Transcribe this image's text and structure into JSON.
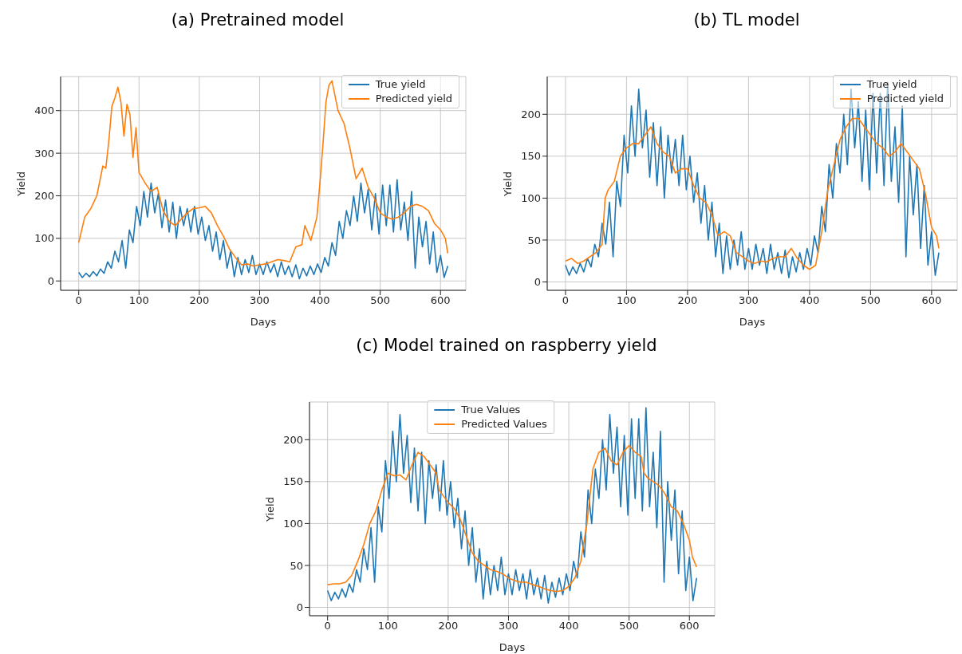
{
  "chart_data": [
    {
      "type": "line",
      "title": "(a) Pretrained model",
      "xlabel": "Days",
      "ylabel": "Yield",
      "xlim": [
        -30,
        642
      ],
      "ylim": [
        -22,
        480
      ],
      "xticks": [
        0,
        100,
        200,
        300,
        400,
        500,
        600
      ],
      "yticks": [
        0,
        100,
        200,
        300,
        400
      ],
      "grid": true,
      "legend": "top right",
      "series": [
        {
          "name": "True yield",
          "color": "#1f77b4",
          "x": [
            0,
            6,
            12,
            18,
            24,
            30,
            36,
            42,
            48,
            54,
            60,
            66,
            72,
            78,
            84,
            90,
            96,
            102,
            108,
            114,
            120,
            126,
            132,
            138,
            144,
            150,
            156,
            162,
            168,
            174,
            180,
            186,
            192,
            198,
            204,
            210,
            216,
            222,
            228,
            234,
            240,
            246,
            252,
            258,
            264,
            270,
            276,
            282,
            288,
            294,
            300,
            306,
            312,
            318,
            324,
            330,
            336,
            342,
            348,
            354,
            360,
            366,
            372,
            378,
            384,
            390,
            396,
            402,
            408,
            414,
            420,
            426,
            432,
            438,
            444,
            450,
            456,
            462,
            468,
            474,
            480,
            486,
            492,
            498,
            504,
            510,
            516,
            522,
            528,
            534,
            540,
            546,
            552,
            558,
            564,
            570,
            576,
            582,
            588,
            594,
            600,
            606,
            612
          ],
          "values": [
            20,
            8,
            18,
            10,
            22,
            12,
            28,
            18,
            45,
            30,
            70,
            45,
            95,
            30,
            120,
            90,
            175,
            130,
            210,
            150,
            230,
            160,
            205,
            125,
            190,
            115,
            185,
            100,
            175,
            130,
            170,
            115,
            175,
            110,
            150,
            95,
            130,
            70,
            115,
            50,
            95,
            30,
            70,
            10,
            55,
            15,
            50,
            20,
            60,
            15,
            40,
            15,
            45,
            20,
            40,
            10,
            45,
            15,
            35,
            10,
            38,
            5,
            30,
            12,
            35,
            15,
            40,
            20,
            55,
            35,
            90,
            60,
            140,
            100,
            165,
            130,
            200,
            140,
            230,
            160,
            215,
            120,
            205,
            110,
            225,
            130,
            225,
            115,
            238,
            120,
            185,
            95,
            210,
            30,
            150,
            80,
            140,
            40,
            115,
            20,
            60,
            8,
            35
          ]
        },
        {
          "name": "Predicted yield",
          "color": "#ff7f0e",
          "x": [
            0,
            10,
            20,
            30,
            40,
            45,
            50,
            55,
            60,
            65,
            70,
            75,
            80,
            85,
            90,
            95,
            100,
            110,
            120,
            130,
            140,
            150,
            160,
            170,
            180,
            190,
            200,
            210,
            220,
            230,
            240,
            250,
            260,
            270,
            280,
            290,
            300,
            310,
            320,
            330,
            340,
            350,
            360,
            370,
            375,
            385,
            395,
            400,
            405,
            410,
            415,
            420,
            430,
            440,
            450,
            460,
            470,
            480,
            490,
            500,
            510,
            520,
            530,
            540,
            550,
            560,
            570,
            580,
            590,
            600,
            608,
            612
          ],
          "values": [
            90,
            150,
            170,
            200,
            270,
            265,
            330,
            410,
            430,
            455,
            420,
            340,
            415,
            390,
            290,
            360,
            255,
            230,
            210,
            220,
            165,
            140,
            130,
            145,
            160,
            170,
            172,
            175,
            160,
            130,
            105,
            75,
            55,
            38,
            40,
            35,
            38,
            40,
            45,
            50,
            48,
            45,
            80,
            85,
            130,
            95,
            150,
            230,
            320,
            420,
            460,
            470,
            400,
            370,
            310,
            240,
            265,
            220,
            195,
            160,
            150,
            145,
            150,
            160,
            175,
            180,
            175,
            165,
            135,
            120,
            100,
            65
          ]
        }
      ]
    },
    {
      "type": "line",
      "title": "(b) TL model",
      "xlabel": "Days",
      "ylabel": "Yield",
      "xlim": [
        -30,
        642
      ],
      "ylim": [
        -10,
        245
      ],
      "xticks": [
        0,
        100,
        200,
        300,
        400,
        500,
        600
      ],
      "yticks": [
        0,
        50,
        100,
        150,
        200
      ],
      "grid": true,
      "legend": "top right",
      "series": [
        {
          "name": "True yield",
          "color": "#1f77b4",
          "x": [
            0,
            6,
            12,
            18,
            24,
            30,
            36,
            42,
            48,
            54,
            60,
            66,
            72,
            78,
            84,
            90,
            96,
            102,
            108,
            114,
            120,
            126,
            132,
            138,
            144,
            150,
            156,
            162,
            168,
            174,
            180,
            186,
            192,
            198,
            204,
            210,
            216,
            222,
            228,
            234,
            240,
            246,
            252,
            258,
            264,
            270,
            276,
            282,
            288,
            294,
            300,
            306,
            312,
            318,
            324,
            330,
            336,
            342,
            348,
            354,
            360,
            366,
            372,
            378,
            384,
            390,
            396,
            402,
            408,
            414,
            420,
            426,
            432,
            438,
            444,
            450,
            456,
            462,
            468,
            474,
            480,
            486,
            492,
            498,
            504,
            510,
            516,
            522,
            528,
            534,
            540,
            546,
            552,
            558,
            564,
            570,
            576,
            582,
            588,
            594,
            600,
            606,
            612
          ],
          "values": [
            20,
            8,
            18,
            10,
            22,
            12,
            28,
            18,
            45,
            30,
            70,
            45,
            95,
            30,
            120,
            90,
            175,
            130,
            210,
            150,
            230,
            160,
            205,
            125,
            190,
            115,
            185,
            100,
            175,
            130,
            170,
            115,
            175,
            110,
            150,
            95,
            130,
            70,
            115,
            50,
            95,
            30,
            70,
            10,
            55,
            15,
            50,
            20,
            60,
            15,
            40,
            15,
            45,
            20,
            40,
            10,
            45,
            15,
            35,
            10,
            38,
            5,
            30,
            12,
            35,
            15,
            40,
            20,
            55,
            35,
            90,
            60,
            140,
            100,
            165,
            130,
            200,
            140,
            230,
            160,
            215,
            120,
            205,
            110,
            225,
            130,
            225,
            115,
            238,
            120,
            185,
            95,
            210,
            30,
            150,
            80,
            140,
            40,
            115,
            20,
            60,
            8,
            35
          ]
        },
        {
          "name": "Predicted yield",
          "color": "#ff7f0e",
          "x": [
            0,
            10,
            20,
            30,
            40,
            50,
            60,
            65,
            70,
            80,
            90,
            100,
            110,
            120,
            130,
            140,
            150,
            160,
            170,
            180,
            190,
            200,
            210,
            220,
            230,
            240,
            250,
            260,
            270,
            280,
            290,
            300,
            310,
            320,
            330,
            340,
            350,
            360,
            370,
            380,
            390,
            400,
            410,
            420,
            430,
            440,
            450,
            460,
            470,
            480,
            490,
            500,
            510,
            520,
            530,
            540,
            550,
            560,
            570,
            580,
            590,
            600,
            608,
            612
          ],
          "values": [
            25,
            28,
            22,
            25,
            30,
            35,
            45,
            100,
            110,
            120,
            150,
            160,
            165,
            165,
            175,
            185,
            165,
            155,
            150,
            130,
            135,
            135,
            115,
            100,
            95,
            80,
            55,
            60,
            55,
            35,
            30,
            25,
            22,
            25,
            24,
            28,
            30,
            30,
            40,
            28,
            20,
            15,
            20,
            60,
            110,
            140,
            170,
            185,
            195,
            195,
            185,
            175,
            165,
            160,
            150,
            155,
            165,
            155,
            145,
            135,
            105,
            65,
            55,
            40
          ]
        }
      ]
    },
    {
      "type": "line",
      "title": "(c) Model trained on raspberry yield",
      "xlabel": "Days",
      "ylabel": "Yield",
      "xlim": [
        -30,
        642
      ],
      "ylim": [
        -10,
        245
      ],
      "xticks": [
        0,
        100,
        200,
        300,
        400,
        500,
        600
      ],
      "yticks": [
        0,
        50,
        100,
        150,
        200
      ],
      "grid": true,
      "legend": "top",
      "series": [
        {
          "name": "True Values",
          "color": "#1f77b4",
          "x": [
            0,
            6,
            12,
            18,
            24,
            30,
            36,
            42,
            48,
            54,
            60,
            66,
            72,
            78,
            84,
            90,
            96,
            102,
            108,
            114,
            120,
            126,
            132,
            138,
            144,
            150,
            156,
            162,
            168,
            174,
            180,
            186,
            192,
            198,
            204,
            210,
            216,
            222,
            228,
            234,
            240,
            246,
            252,
            258,
            264,
            270,
            276,
            282,
            288,
            294,
            300,
            306,
            312,
            318,
            324,
            330,
            336,
            342,
            348,
            354,
            360,
            366,
            372,
            378,
            384,
            390,
            396,
            402,
            408,
            414,
            420,
            426,
            432,
            438,
            444,
            450,
            456,
            462,
            468,
            474,
            480,
            486,
            492,
            498,
            504,
            510,
            516,
            522,
            528,
            534,
            540,
            546,
            552,
            558,
            564,
            570,
            576,
            582,
            588,
            594,
            600,
            606,
            612
          ],
          "values": [
            20,
            8,
            18,
            10,
            22,
            12,
            28,
            18,
            45,
            30,
            70,
            45,
            95,
            30,
            120,
            90,
            175,
            130,
            210,
            150,
            230,
            160,
            205,
            125,
            190,
            115,
            185,
            100,
            175,
            130,
            170,
            115,
            175,
            110,
            150,
            95,
            130,
            70,
            115,
            50,
            95,
            30,
            70,
            10,
            55,
            15,
            50,
            20,
            60,
            15,
            40,
            15,
            45,
            20,
            40,
            10,
            45,
            15,
            35,
            10,
            38,
            5,
            30,
            12,
            35,
            15,
            40,
            20,
            55,
            35,
            90,
            60,
            140,
            100,
            165,
            130,
            200,
            140,
            230,
            160,
            215,
            120,
            205,
            110,
            225,
            130,
            225,
            115,
            238,
            120,
            185,
            95,
            210,
            30,
            150,
            80,
            140,
            40,
            115,
            20,
            60,
            8,
            35
          ]
        },
        {
          "name": "Predicted Values",
          "color": "#ff7f0e",
          "x": [
            0,
            10,
            20,
            30,
            40,
            50,
            60,
            70,
            80,
            90,
            100,
            110,
            120,
            130,
            140,
            150,
            160,
            170,
            180,
            185,
            190,
            200,
            210,
            220,
            230,
            240,
            250,
            260,
            270,
            280,
            290,
            300,
            310,
            320,
            330,
            340,
            350,
            360,
            370,
            380,
            390,
            400,
            410,
            420,
            430,
            440,
            450,
            460,
            470,
            480,
            490,
            500,
            510,
            520,
            525,
            530,
            540,
            550,
            560,
            570,
            580,
            590,
            600,
            605,
            612
          ],
          "values": [
            27,
            28,
            28,
            30,
            38,
            55,
            75,
            100,
            115,
            140,
            160,
            157,
            158,
            152,
            170,
            185,
            180,
            170,
            160,
            140,
            135,
            125,
            118,
            105,
            85,
            65,
            55,
            50,
            45,
            43,
            40,
            35,
            32,
            30,
            30,
            27,
            25,
            22,
            20,
            19,
            20,
            25,
            35,
            55,
            100,
            165,
            185,
            190,
            175,
            170,
            185,
            193,
            185,
            180,
            160,
            155,
            150,
            145,
            135,
            120,
            115,
            100,
            80,
            60,
            48
          ]
        }
      ]
    }
  ]
}
